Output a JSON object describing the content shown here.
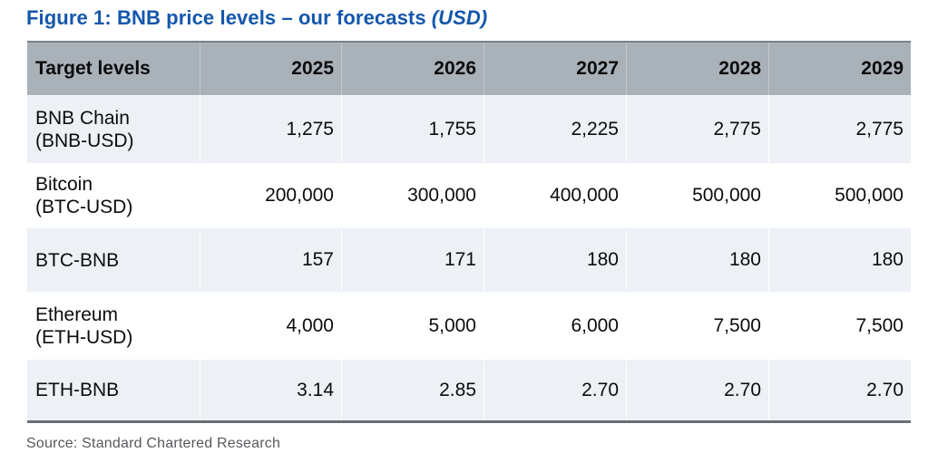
{
  "page": {
    "title_prefix": "Figure 1: BNB price levels – our forecasts",
    "title_suffix": "(USD)",
    "source_line": "Source: Standard Chartered Research"
  },
  "chart_data": {
    "type": "table",
    "title": "Figure 1: BNB price levels – our forecasts (USD)",
    "columns": [
      "Target levels",
      "2025",
      "2026",
      "2027",
      "2028",
      "2029"
    ],
    "rows": [
      {
        "label": "BNB Chain",
        "sublabel": "(BNB-USD)",
        "values": [
          "1,275",
          "1,755",
          "2,225",
          "2,775",
          "2,775"
        ]
      },
      {
        "label": "Bitcoin",
        "sublabel": "(BTC-USD)",
        "values": [
          "200,000",
          "300,000",
          "400,000",
          "500,000",
          "500,000"
        ]
      },
      {
        "label": "BTC-BNB",
        "sublabel": "",
        "values": [
          "157",
          "171",
          "180",
          "180",
          "180"
        ]
      },
      {
        "label": "Ethereum",
        "sublabel": "(ETH-USD)",
        "values": [
          "4,000",
          "5,000",
          "6,000",
          "7,500",
          "7,500"
        ]
      },
      {
        "label": "ETH-BNB",
        "sublabel": "",
        "values": [
          "3.14",
          "2.85",
          "2.70",
          "2.70",
          "2.70"
        ]
      }
    ],
    "source": "Standard Chartered Research"
  },
  "colors": {
    "title_blue": "#1457ab",
    "header_bg": "#a9b1b9",
    "shaded_row_bg": "#edf1f5",
    "plain_row_bg": "#ffffff",
    "table_top_border": "#7a8086",
    "table_bottom_border": "#696f75",
    "body_text": "#0c0c0c",
    "source_text": "#56595d"
  }
}
